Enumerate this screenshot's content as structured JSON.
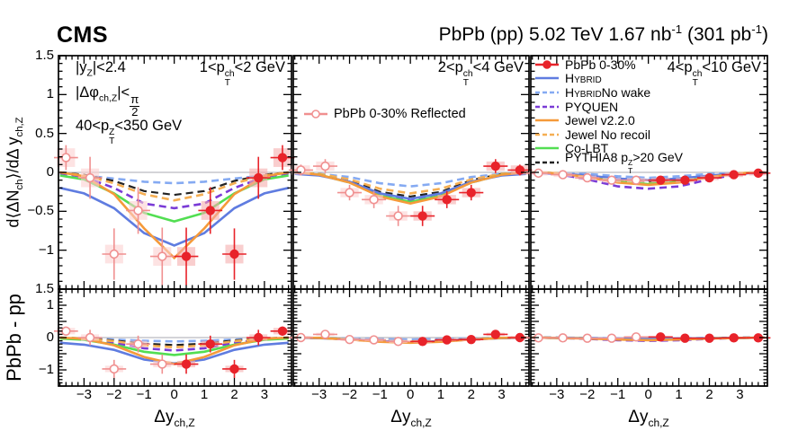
{
  "header": {
    "experiment": "CMS",
    "title": "PbPb (pp) 5.02 TeV 1.67 nb^{-1} (301 pb^{-1})"
  },
  "figure": {
    "conditions": [
      "|y_{Z}|<2.4",
      "|Δφ_{ch,Z}|<\\frac{π}{2}",
      "40<p_{T}^{Z}<350 GeV"
    ]
  },
  "chart_data": {
    "type": "line",
    "xlabel": "Δy_{ch,Z}",
    "x_range": [
      -3.85,
      3.9
    ],
    "x_ticks": [
      -3,
      -2,
      -1,
      0,
      1,
      2,
      3
    ],
    "x_minor_step": 0.2,
    "x_points_measured": [
      0.4,
      1.2,
      2.0,
      2.8,
      3.6
    ],
    "curve_x": [
      -3.8,
      -3,
      -2,
      -1,
      0,
      1,
      2,
      3,
      3.8
    ],
    "rows": [
      {
        "ylabel": "d⟨ΔN_{ch}⟩/dΔ y_{ch,Z}",
        "y_range": [
          -1.5,
          1.5
        ],
        "y_tick_labels": [
          1.5,
          1,
          0.5,
          0,
          -0.5,
          -1
        ],
        "y_major_step": 0.5,
        "y_minor_step": 0.1
      },
      {
        "ylabel": "PbPb - pp",
        "y_range": [
          -1.5,
          1.5
        ],
        "y_tick_labels": [
          1.5,
          1,
          0,
          -1
        ],
        "y_major_step": 0.5,
        "y_minor_step": 0.1
      }
    ],
    "series": {
      "pbpb": {
        "label": "PbPb 0-30%",
        "color": "#e8232a",
        "style": "marker"
      },
      "hybrid": {
        "label": "Hybrid",
        "smallcaps": true,
        "color": "#5f7ce0",
        "style": "solid"
      },
      "hybrid_nowake": {
        "label": "Hybrid",
        "rest": " No wake",
        "smallcaps": true,
        "color": "#85aaf2",
        "style": "dashed"
      },
      "pyquen": {
        "label": "PYQUEN",
        "color": "#7a3bd6",
        "style": "dashed"
      },
      "jewel": {
        "label": "Jewel v2.2.0",
        "color": "#f59a3a",
        "style": "solid"
      },
      "jewel_norecoil": {
        "label": "Jewel No recoil",
        "color": "#f5ae52",
        "style": "dashed"
      },
      "colbt": {
        "label": "Co-LBT",
        "color": "#52de52",
        "style": "solid"
      },
      "pythia8": {
        "label": "PYTHIA8 p_{T}^{Z}>20 GeV",
        "color": "#222222",
        "style": "dashed"
      }
    },
    "legend_order": [
      "pbpb",
      "hybrid",
      "hybrid_nowake",
      "pyquen",
      "jewel",
      "jewel_norecoil",
      "colbt",
      "pythia8"
    ],
    "draw_order": [
      "hybrid_nowake",
      "pythia8",
      "pyquen",
      "jewel_norecoil",
      "colbt",
      "hybrid",
      "jewel"
    ],
    "reflected": {
      "label": "PbPb 0-30% Reflected",
      "color": "#f09090",
      "box": "#fbd0d0"
    },
    "measured_style": {
      "color": "#e8232a",
      "box": "#f5aeae"
    },
    "columns": [
      {
        "label": "1<p_{T}^{ch}<2 GeV",
        "upper": {
          "measured": [
            -1.08,
            -0.49,
            -1.05,
            -0.07,
            0.19
          ],
          "stat_err": [
            0.37,
            0.3,
            0.33,
            0.27,
            0.16
          ],
          "syst": 0.12,
          "curves": {
            "hybrid": [
              -0.2,
              -0.27,
              -0.46,
              -0.78,
              -0.94,
              -0.78,
              -0.46,
              -0.27,
              -0.2
            ],
            "hybrid_nowake": [
              -0.02,
              -0.04,
              -0.08,
              -0.12,
              -0.14,
              -0.12,
              -0.08,
              -0.04,
              -0.02
            ],
            "pyquen": [
              -0.01,
              -0.06,
              -0.2,
              -0.4,
              -0.46,
              -0.4,
              -0.2,
              -0.06,
              -0.01
            ],
            "jewel": [
              0.0,
              -0.05,
              -0.28,
              -0.72,
              -1.1,
              -0.72,
              -0.28,
              -0.05,
              0.0
            ],
            "jewel_norecoil": [
              0.0,
              -0.04,
              -0.14,
              -0.28,
              -0.36,
              -0.28,
              -0.14,
              -0.04,
              0.0
            ],
            "colbt": [
              -0.04,
              -0.09,
              -0.27,
              -0.52,
              -0.63,
              -0.52,
              -0.27,
              -0.09,
              -0.04
            ],
            "pythia8": [
              0.0,
              -0.03,
              -0.11,
              -0.24,
              -0.29,
              -0.24,
              -0.11,
              -0.03,
              0.0
            ]
          }
        },
        "lower": {
          "measured": [
            -0.82,
            -0.2,
            -0.97,
            0.0,
            0.2
          ],
          "stat_err": [
            0.3,
            0.26,
            0.28,
            0.24,
            0.14
          ],
          "syst": 0.1,
          "curves": {
            "hybrid": [
              -0.16,
              -0.22,
              -0.38,
              -0.68,
              -0.8,
              -0.68,
              -0.38,
              -0.22,
              -0.16
            ],
            "hybrid_nowake": [
              -0.01,
              -0.03,
              -0.06,
              -0.1,
              -0.12,
              -0.1,
              -0.06,
              -0.03,
              -0.01
            ],
            "pyquen": [
              0.0,
              -0.05,
              -0.16,
              -0.33,
              -0.4,
              -0.33,
              -0.16,
              -0.05,
              0.0
            ],
            "jewel": [
              0.0,
              -0.04,
              -0.24,
              -0.6,
              -0.82,
              -0.6,
              -0.24,
              -0.04,
              0.0
            ],
            "jewel_norecoil": [
              0.0,
              -0.03,
              -0.11,
              -0.24,
              -0.3,
              -0.24,
              -0.11,
              -0.03,
              0.0
            ],
            "colbt": [
              -0.03,
              -0.07,
              -0.22,
              -0.44,
              -0.54,
              -0.44,
              -0.22,
              -0.07,
              -0.03
            ],
            "pythia8": [
              0.0,
              -0.02,
              -0.09,
              -0.19,
              -0.23,
              -0.19,
              -0.09,
              -0.02,
              0.0
            ]
          }
        }
      },
      {
        "label": "2<p_{T}^{ch}<4 GeV",
        "upper": {
          "measured": [
            -0.56,
            -0.35,
            -0.26,
            0.08,
            0.03
          ],
          "stat_err": [
            0.13,
            0.11,
            0.1,
            0.09,
            0.07
          ],
          "syst": 0.06,
          "curves": {
            "hybrid": [
              -0.02,
              -0.04,
              -0.12,
              -0.27,
              -0.34,
              -0.27,
              -0.12,
              -0.04,
              -0.02
            ],
            "hybrid_nowake": [
              -0.01,
              -0.02,
              -0.06,
              -0.14,
              -0.18,
              -0.14,
              -0.06,
              -0.02,
              -0.01
            ],
            "pyquen": [
              0.0,
              -0.03,
              -0.13,
              -0.3,
              -0.37,
              -0.3,
              -0.13,
              -0.03,
              0.0
            ],
            "jewel": [
              0.0,
              -0.03,
              -0.13,
              -0.31,
              -0.4,
              -0.31,
              -0.13,
              -0.03,
              0.0
            ],
            "jewel_norecoil": [
              0.0,
              -0.02,
              -0.09,
              -0.21,
              -0.27,
              -0.21,
              -0.09,
              -0.02,
              0.0
            ],
            "colbt": [
              -0.01,
              -0.03,
              -0.13,
              -0.3,
              -0.38,
              -0.3,
              -0.13,
              -0.03,
              -0.01
            ],
            "pythia8": [
              0.0,
              -0.02,
              -0.1,
              -0.25,
              -0.31,
              -0.25,
              -0.1,
              -0.02,
              0.0
            ]
          }
        },
        "lower": {
          "measured": [
            -0.12,
            -0.07,
            -0.06,
            0.1,
            0.0
          ],
          "stat_err": [
            0.11,
            0.09,
            0.09,
            0.08,
            0.06
          ],
          "syst": 0.05,
          "curves": {
            "hybrid": [
              -0.01,
              -0.02,
              -0.05,
              -0.11,
              -0.14,
              -0.11,
              -0.05,
              -0.02,
              -0.01
            ],
            "hybrid_nowake": [
              0.0,
              -0.01,
              -0.02,
              -0.05,
              -0.06,
              -0.05,
              -0.02,
              -0.01,
              0.0
            ],
            "pyquen": [
              0.0,
              -0.01,
              -0.06,
              -0.12,
              -0.15,
              -0.12,
              -0.06,
              -0.01,
              0.0
            ],
            "jewel": [
              0.0,
              -0.01,
              -0.06,
              -0.13,
              -0.16,
              -0.13,
              -0.06,
              -0.01,
              0.0
            ],
            "jewel_norecoil": [
              0.0,
              -0.01,
              -0.04,
              -0.1,
              -0.12,
              -0.1,
              -0.04,
              -0.01,
              0.0
            ],
            "colbt": [
              0.0,
              -0.01,
              -0.05,
              -0.12,
              -0.15,
              -0.12,
              -0.05,
              -0.01,
              0.0
            ],
            "pythia8": [
              0.0,
              -0.01,
              -0.05,
              -0.11,
              -0.13,
              -0.11,
              -0.05,
              -0.01,
              0.0
            ]
          }
        }
      },
      {
        "label": "4<p_{T}^{ch}<10 GeV",
        "upper": {
          "measured": [
            -0.1,
            -0.1,
            -0.07,
            -0.03,
            -0.01
          ],
          "stat_err": [
            0.05,
            0.05,
            0.04,
            0.04,
            0.03
          ],
          "syst": 0.03,
          "curves": {
            "hybrid": [
              -0.01,
              -0.01,
              -0.04,
              -0.08,
              -0.1,
              -0.08,
              -0.04,
              -0.01,
              -0.01
            ],
            "hybrid_nowake": [
              0.0,
              -0.01,
              -0.02,
              -0.05,
              -0.07,
              -0.05,
              -0.02,
              -0.01,
              0.0
            ],
            "pyquen": [
              0.0,
              -0.02,
              -0.09,
              -0.18,
              -0.21,
              -0.18,
              -0.09,
              -0.02,
              0.0
            ],
            "jewel": [
              0.0,
              -0.01,
              -0.06,
              -0.13,
              -0.16,
              -0.13,
              -0.06,
              -0.01,
              0.0
            ],
            "jewel_norecoil": [
              0.0,
              -0.01,
              -0.05,
              -0.11,
              -0.14,
              -0.11,
              -0.05,
              -0.01,
              0.0
            ],
            "colbt": [
              0.0,
              -0.01,
              -0.05,
              -0.12,
              -0.15,
              -0.12,
              -0.05,
              -0.01,
              0.0
            ],
            "pythia8": [
              0.0,
              -0.01,
              -0.04,
              -0.1,
              -0.13,
              -0.1,
              -0.04,
              -0.01,
              0.0
            ]
          }
        },
        "lower": {
          "measured": [
            0.02,
            -0.02,
            -0.02,
            -0.01,
            -0.01
          ],
          "stat_err": [
            0.05,
            0.04,
            0.04,
            0.03,
            0.03
          ],
          "syst": 0.02,
          "curves": {
            "hybrid": [
              0.0,
              -0.01,
              -0.02,
              -0.04,
              -0.05,
              -0.04,
              -0.02,
              -0.01,
              0.0
            ],
            "hybrid_nowake": [
              0.0,
              0.0,
              -0.01,
              -0.02,
              -0.03,
              -0.02,
              -0.01,
              0.0,
              0.0
            ],
            "pyquen": [
              0.0,
              -0.01,
              -0.04,
              -0.08,
              -0.1,
              -0.08,
              -0.04,
              -0.01,
              0.0
            ],
            "jewel": [
              0.0,
              -0.01,
              -0.03,
              -0.06,
              -0.08,
              -0.06,
              -0.03,
              -0.01,
              0.0
            ],
            "jewel_norecoil": [
              0.0,
              -0.01,
              -0.02,
              -0.05,
              -0.06,
              -0.05,
              -0.02,
              -0.01,
              0.0
            ],
            "colbt": [
              0.0,
              -0.01,
              -0.02,
              -0.05,
              -0.07,
              -0.05,
              -0.02,
              -0.01,
              0.0
            ],
            "pythia8": [
              0.0,
              0.0,
              -0.02,
              -0.05,
              -0.06,
              -0.05,
              -0.02,
              0.0,
              0.0
            ]
          }
        }
      }
    ]
  }
}
